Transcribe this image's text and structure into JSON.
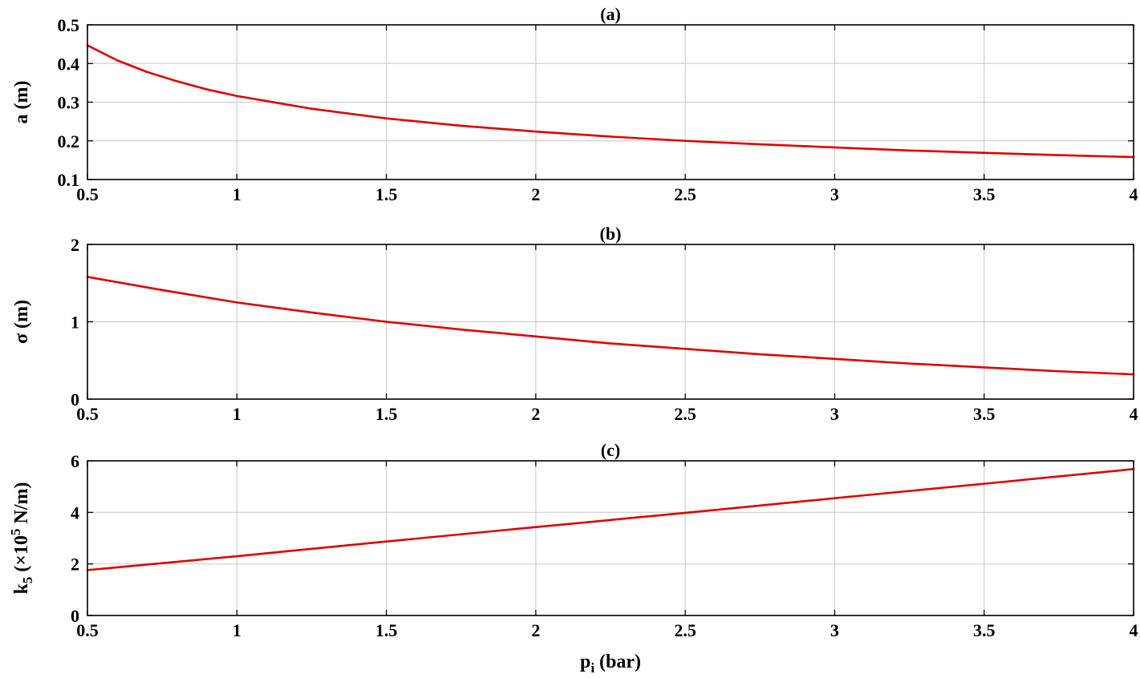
{
  "chart_data": [
    {
      "type": "line",
      "title": "(a)",
      "ylabel": "a (m)",
      "xlabel": "",
      "xlim": [
        0.5,
        4
      ],
      "ylim": [
        0.1,
        0.5
      ],
      "xticks": [
        0.5,
        1,
        1.5,
        2,
        2.5,
        3,
        3.5,
        4
      ],
      "xtick_labels": [
        "0.5",
        "1",
        "1.5",
        "2",
        "2.5",
        "3",
        "3.5",
        "4"
      ],
      "yticks": [
        0.1,
        0.2,
        0.3,
        0.4,
        0.5
      ],
      "ytick_labels": [
        "0.1",
        "0.2",
        "0.3",
        "0.4",
        "0.5"
      ],
      "grid": true,
      "series": [
        {
          "color": "#e00000",
          "x": [
            0.5,
            0.6,
            0.7,
            0.8,
            0.9,
            1.0,
            1.25,
            1.5,
            1.75,
            2.0,
            2.25,
            2.5,
            2.75,
            3.0,
            3.25,
            3.5,
            3.75,
            4.0
          ],
          "y": [
            0.447,
            0.408,
            0.378,
            0.354,
            0.333,
            0.316,
            0.283,
            0.258,
            0.239,
            0.224,
            0.211,
            0.2,
            0.191,
            0.183,
            0.175,
            0.169,
            0.163,
            0.158
          ]
        }
      ]
    },
    {
      "type": "line",
      "title": "(b)",
      "ylabel": "σ (m)",
      "xlabel": "",
      "xlim": [
        0.5,
        4
      ],
      "ylim": [
        0,
        2
      ],
      "xticks": [
        0.5,
        1,
        1.5,
        2,
        2.5,
        3,
        3.5,
        4
      ],
      "xtick_labels": [
        "0.5",
        "1",
        "1.5",
        "2",
        "2.5",
        "3",
        "3.5",
        "4"
      ],
      "yticks": [
        0,
        1,
        2
      ],
      "ytick_labels": [
        "0",
        "1",
        "2"
      ],
      "grid": true,
      "series": [
        {
          "color": "#e00000",
          "x": [
            0.5,
            0.75,
            1.0,
            1.25,
            1.5,
            1.75,
            2.0,
            2.25,
            2.5,
            2.75,
            3.0,
            3.25,
            3.5,
            3.75,
            4.0
          ],
          "y": [
            1.58,
            1.41,
            1.25,
            1.12,
            1.0,
            0.9,
            0.81,
            0.72,
            0.65,
            0.58,
            0.52,
            0.46,
            0.41,
            0.36,
            0.32
          ]
        }
      ]
    },
    {
      "type": "line",
      "title": "(c)",
      "ylabel": "k",
      "ylabel_sub": "5",
      "ylabel_rest": " (×10",
      "ylabel_sup": "5",
      "ylabel_unit": " N/m)",
      "xlabel": "p",
      "xlabel_sub": "i",
      "xlabel_unit": " (bar)",
      "xlim": [
        0.5,
        4
      ],
      "ylim": [
        0,
        6
      ],
      "xticks": [
        0.5,
        1,
        1.5,
        2,
        2.5,
        3,
        3.5,
        4
      ],
      "xtick_labels": [
        "0.5",
        "1",
        "1.5",
        "2",
        "2.5",
        "3",
        "3.5",
        "4"
      ],
      "yticks": [
        0,
        2,
        4,
        6
      ],
      "ytick_labels": [
        "0",
        "2",
        "4",
        "6"
      ],
      "grid": true,
      "series": [
        {
          "color": "#e00000",
          "x": [
            0.5,
            1.0,
            1.5,
            2.0,
            2.5,
            3.0,
            3.5,
            4.0
          ],
          "y": [
            1.76,
            2.3,
            2.87,
            3.43,
            3.98,
            4.55,
            5.11,
            5.68
          ]
        }
      ]
    }
  ]
}
